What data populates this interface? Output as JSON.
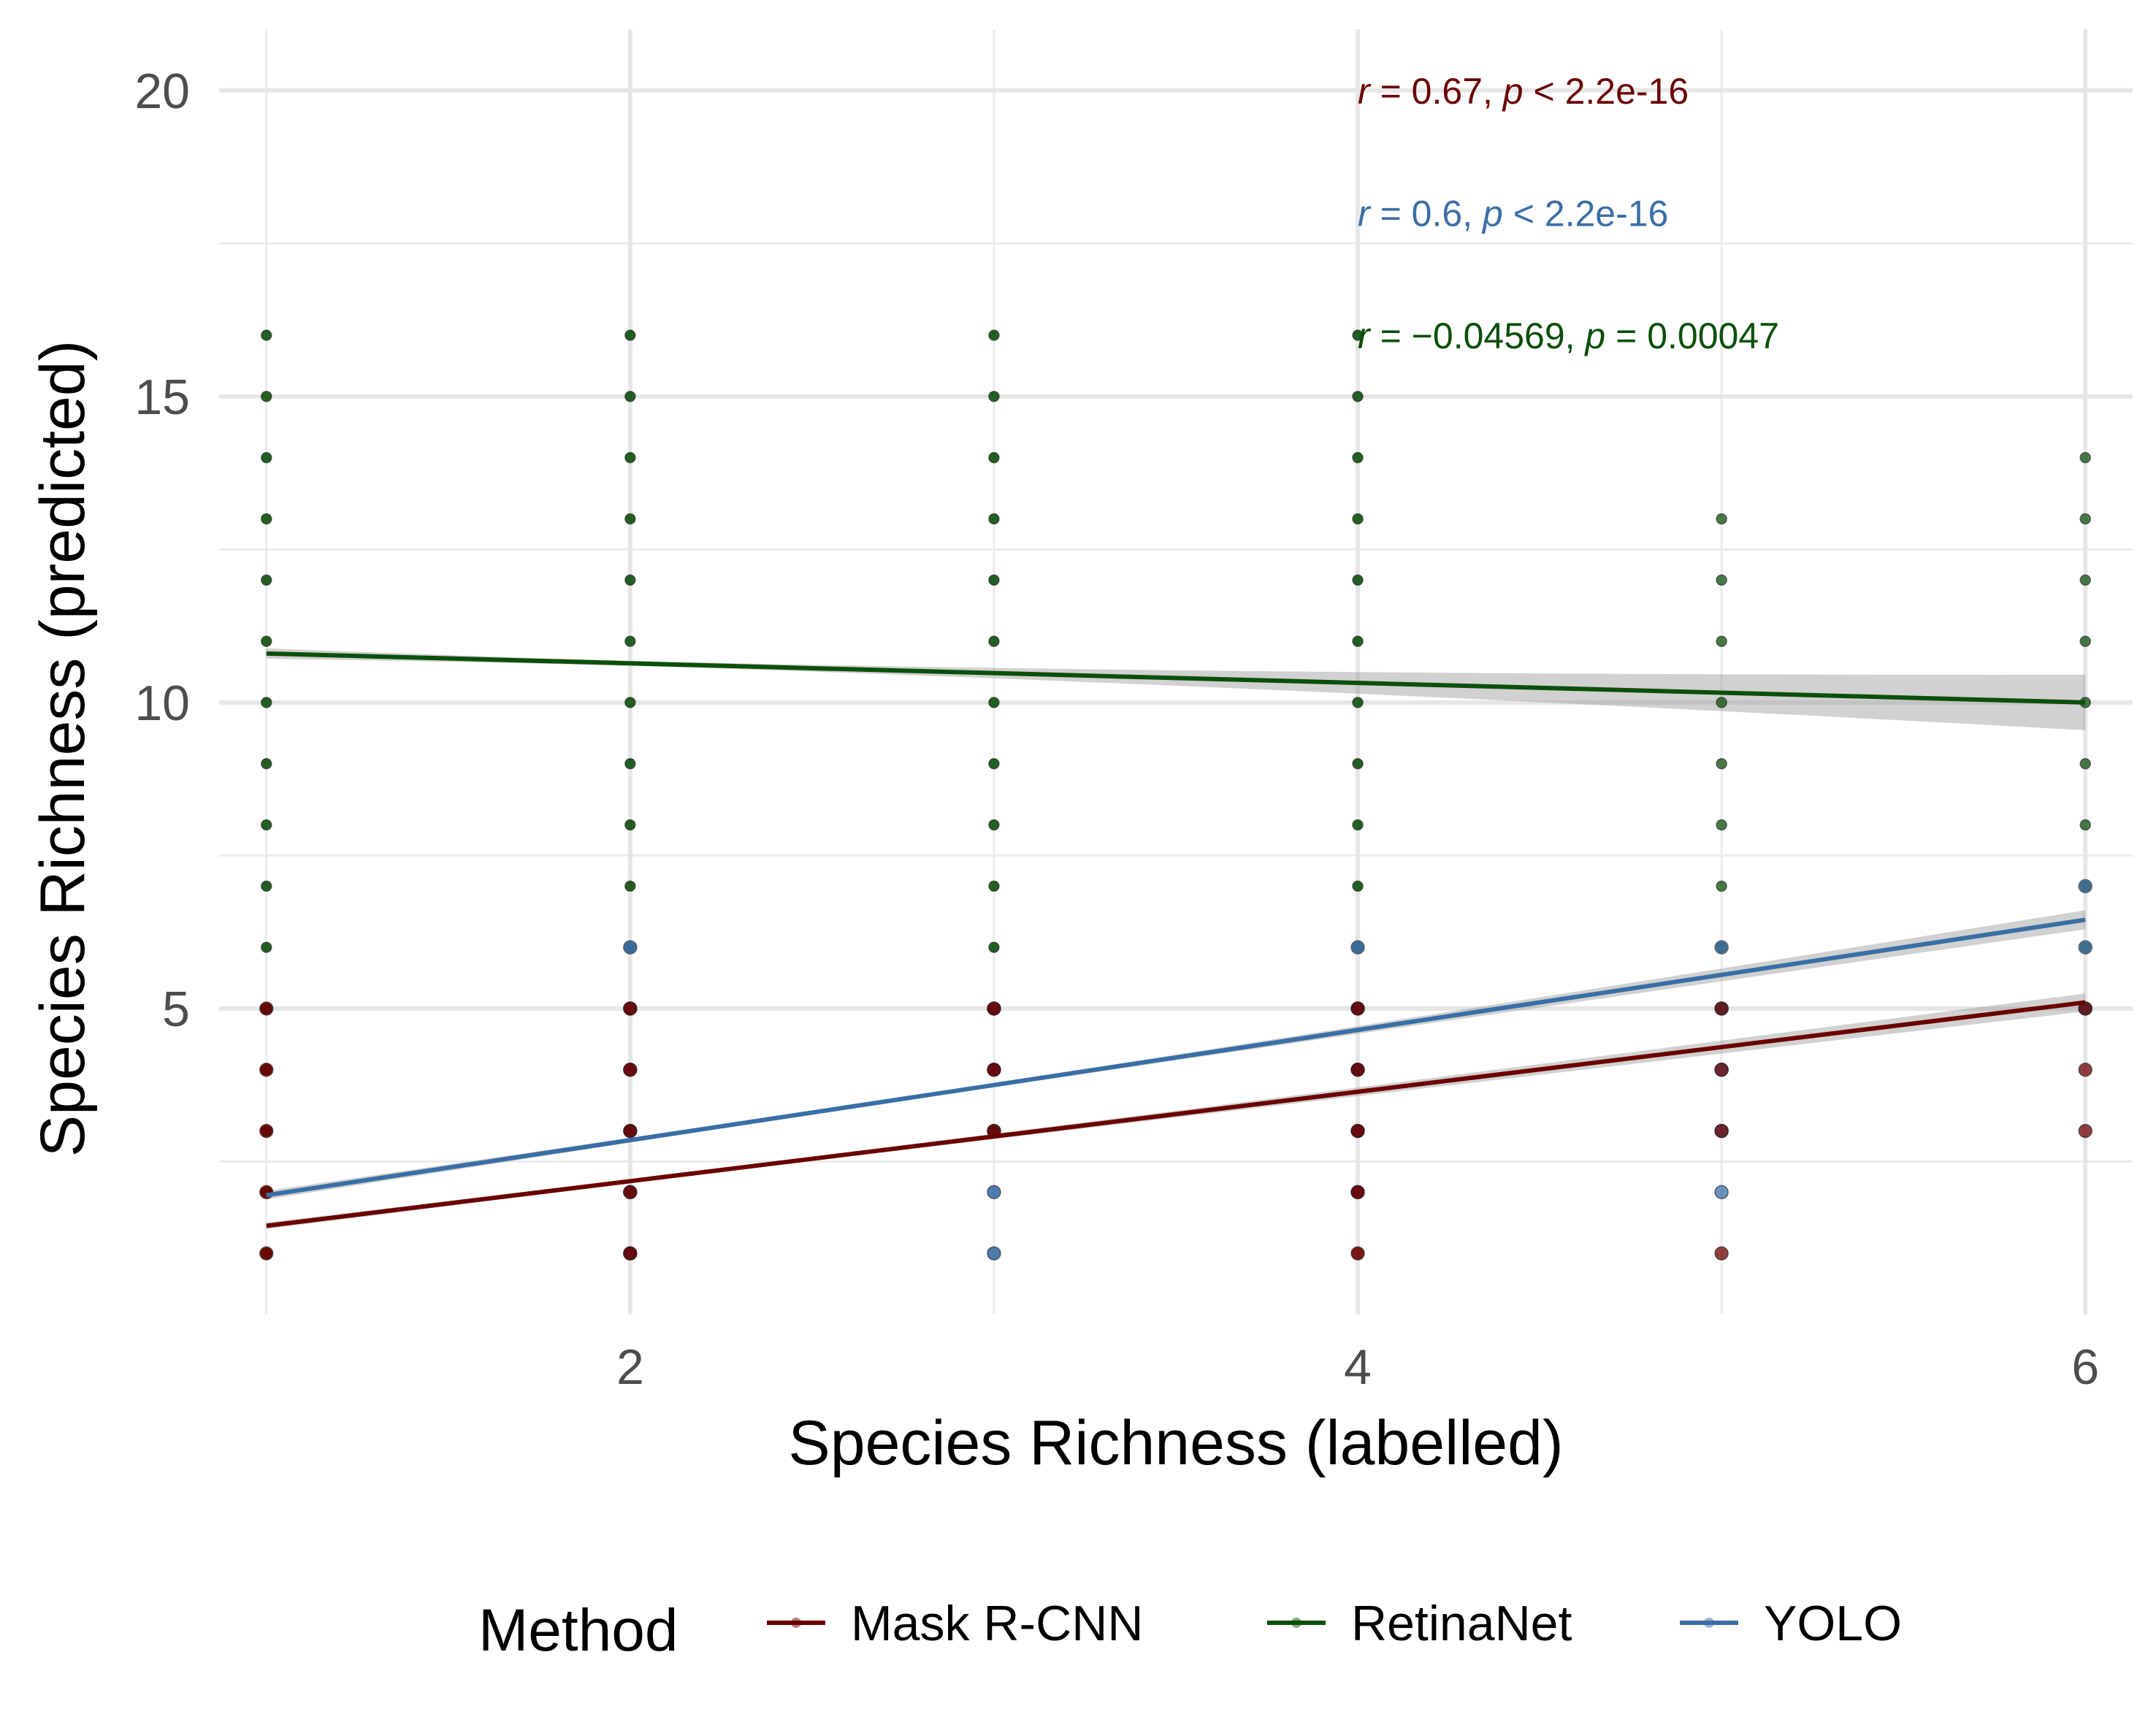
{
  "chart_data": {
    "type": "scatter",
    "title": "",
    "xlabel": "Species Richness (labelled)",
    "ylabel": "Species Richness (predicted)",
    "xlim": [
      0.87,
      6.13
    ],
    "ylim": [
      0.0,
      21.0
    ],
    "x_ticks": [
      2,
      4,
      6
    ],
    "y_ticks": [
      5,
      10,
      15,
      20
    ],
    "grid": true,
    "legend": {
      "title": "Method",
      "position": "bottom",
      "entries": [
        "Mask R-CNN",
        "RetinaNet",
        "YOLO"
      ]
    },
    "series": [
      {
        "name": "Mask R-CNN",
        "color": "#6b0000",
        "fit": {
          "x": [
            1,
            6
          ],
          "y": [
            1.45,
            5.1
          ]
        },
        "points": [
          {
            "x": 1,
            "y": [
              1,
              2,
              3,
              4,
              5
            ]
          },
          {
            "x": 2,
            "y": [
              1,
              2,
              3,
              4,
              5
            ]
          },
          {
            "x": 3,
            "y": [
              3,
              4,
              5
            ]
          },
          {
            "x": 4,
            "y": [
              1,
              2,
              3,
              4,
              5
            ]
          },
          {
            "x": 5,
            "y": [
              1,
              3,
              4,
              5
            ]
          },
          {
            "x": 6,
            "y": [
              3,
              4,
              5
            ]
          }
        ]
      },
      {
        "name": "RetinaNet",
        "color": "#0b4f0b",
        "fit": {
          "x": [
            1,
            6
          ],
          "y": [
            10.8,
            10.0
          ]
        },
        "points": [
          {
            "x": 1,
            "y": [
              1,
              2,
              3,
              4,
              5,
              6,
              7,
              8,
              9,
              10,
              11,
              12,
              13,
              14,
              15,
              16
            ]
          },
          {
            "x": 2,
            "y": [
              1,
              2,
              3,
              4,
              5,
              6,
              7,
              8,
              9,
              10,
              11,
              12,
              13,
              14,
              15,
              16
            ]
          },
          {
            "x": 3,
            "y": [
              3,
              4,
              5,
              6,
              7,
              8,
              9,
              10,
              11,
              12,
              13,
              14,
              15,
              16
            ]
          },
          {
            "x": 4,
            "y": [
              3,
              4,
              5,
              6,
              7,
              8,
              9,
              10,
              11,
              12,
              13,
              14,
              15,
              16
            ]
          },
          {
            "x": 5,
            "y": [
              5,
              6,
              7,
              8,
              9,
              10,
              11,
              12,
              13
            ]
          },
          {
            "x": 6,
            "y": [
              5,
              6,
              7,
              8,
              9,
              10,
              11,
              12,
              13,
              14
            ]
          }
        ]
      },
      {
        "name": "YOLO",
        "color": "#3a6ea5",
        "fit": {
          "x": [
            1,
            6
          ],
          "y": [
            1.95,
            6.45
          ]
        },
        "points": [
          {
            "x": 2,
            "y": [
              1,
              2,
              3,
              4,
              5,
              6
            ]
          },
          {
            "x": 3,
            "y": [
              1,
              2,
              3,
              4,
              5
            ]
          },
          {
            "x": 4,
            "y": [
              2,
              3,
              4,
              5,
              6
            ]
          },
          {
            "x": 5,
            "y": [
              2,
              3,
              4,
              5,
              6
            ]
          },
          {
            "x": 6,
            "y": [
              5,
              6,
              7
            ]
          }
        ]
      }
    ],
    "annotations": [
      {
        "series": "Mask R-CNN",
        "r_label": "r",
        "r_text": " = 0.67, ",
        "p_label": "p",
        "p_text": " < 2.2e-16",
        "color": "#6b0000",
        "x": 4,
        "y": 20
      },
      {
        "series": "YOLO",
        "r_label": "r",
        "r_text": " = 0.6, ",
        "p_label": "p",
        "p_text": " < 2.2e-16",
        "color": "#3a6ea5",
        "x": 4,
        "y": 18
      },
      {
        "series": "RetinaNet",
        "r_label": "r",
        "r_text": " = −0.04569, ",
        "p_label": "p",
        "p_text": " = 0.00047",
        "color": "#0b4f0b",
        "x": 4,
        "y": 16
      }
    ]
  }
}
